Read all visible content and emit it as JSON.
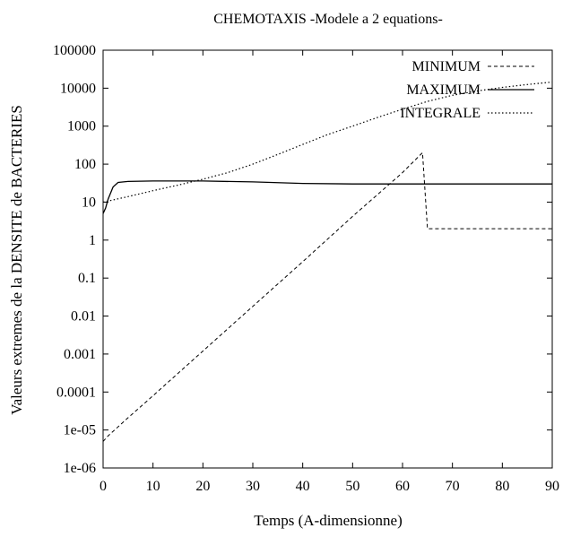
{
  "chart_data": {
    "type": "line",
    "title": "CHEMOTAXIS -Modele a 2 equations-",
    "xlabel": "Temps (A-dimensionne)",
    "ylabel": "Valeurs extremes de la DENSITE de BACTERIES",
    "xlim": [
      0,
      90
    ],
    "ylim": [
      1e-06,
      100000
    ],
    "yscale": "log",
    "grid": false,
    "legend_position": "top-right",
    "x_ticks": [
      "0",
      "10",
      "20",
      "30",
      "40",
      "50",
      "60",
      "70",
      "80",
      "90"
    ],
    "y_ticks": [
      "1e-06",
      "1e-05",
      "0.0001",
      "0.001",
      "0.01",
      "0.1",
      "1",
      "10",
      "100",
      "1000",
      "10000",
      "100000"
    ],
    "series": [
      {
        "name": "MINIMUM",
        "dash": "4,3",
        "points": [
          [
            0,
            5e-06
          ],
          [
            1,
            7e-06
          ],
          [
            5,
            2.1e-05
          ],
          [
            10,
            8e-05
          ],
          [
            20,
            0.0012
          ],
          [
            30,
            0.018
          ],
          [
            40,
            0.27
          ],
          [
            50,
            4.2
          ],
          [
            60,
            60
          ],
          [
            64,
            200
          ],
          [
            65,
            2
          ],
          [
            70,
            2
          ],
          [
            80,
            2
          ],
          [
            90,
            2
          ]
        ]
      },
      {
        "name": "MAXIMUM",
        "dash": "",
        "points": [
          [
            0,
            5
          ],
          [
            0.5,
            7
          ],
          [
            1,
            12
          ],
          [
            2,
            25
          ],
          [
            3,
            33
          ],
          [
            5,
            35
          ],
          [
            10,
            36
          ],
          [
            20,
            36
          ],
          [
            30,
            34
          ],
          [
            40,
            31
          ],
          [
            50,
            30
          ],
          [
            60,
            30
          ],
          [
            70,
            30
          ],
          [
            80,
            30
          ],
          [
            90,
            30
          ]
        ]
      },
      {
        "name": "INTEGRALE",
        "dash": "1.5,2.5",
        "points": [
          [
            0,
            10
          ],
          [
            5,
            14
          ],
          [
            10,
            20
          ],
          [
            15,
            28
          ],
          [
            20,
            40
          ],
          [
            25,
            60
          ],
          [
            30,
            100
          ],
          [
            35,
            180
          ],
          [
            40,
            330
          ],
          [
            45,
            600
          ],
          [
            50,
            1000
          ],
          [
            55,
            1700
          ],
          [
            60,
            2800
          ],
          [
            65,
            4500
          ],
          [
            70,
            6500
          ],
          [
            75,
            8500
          ],
          [
            80,
            10500
          ],
          [
            85,
            12500
          ],
          [
            90,
            14500
          ]
        ]
      }
    ]
  }
}
